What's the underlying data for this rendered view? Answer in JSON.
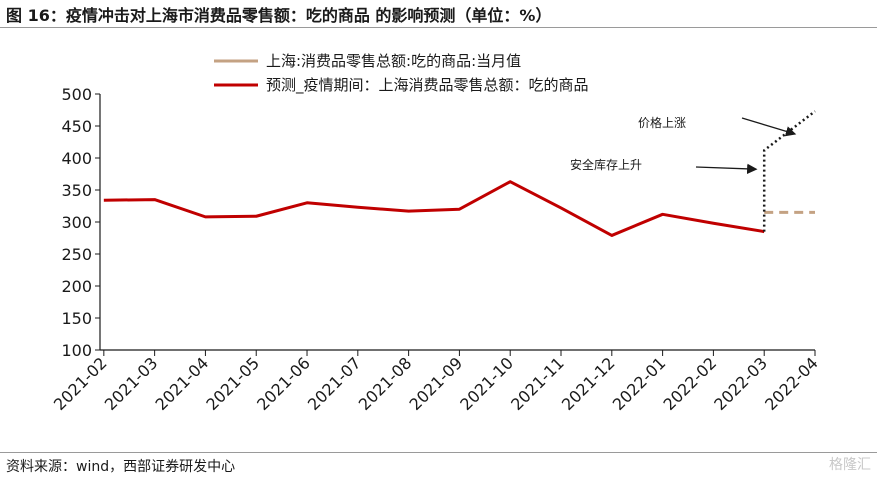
{
  "title": "图 16：疫情冲击对上海市消费品零售额：吃的商品 的影响预测（单位：%）",
  "source": "资料来源：wind，西部证券研发中心",
  "watermark": "格隆汇",
  "chart_data": {
    "type": "line",
    "categories": [
      "2021-02",
      "2021-03",
      "2021-04",
      "2021-05",
      "2021-06",
      "2021-07",
      "2021-08",
      "2021-09",
      "2021-10",
      "2021-11",
      "2021-12",
      "2022-01",
      "2022-02",
      "2022-03",
      "2022-04"
    ],
    "ylim": [
      100,
      500
    ],
    "yticks": [
      100,
      150,
      200,
      250,
      300,
      350,
      400,
      450,
      500
    ],
    "grid": false,
    "legend_position": "top-left",
    "series": [
      {
        "name": "上海:消费品零售总额:吃的商品:当月值",
        "style": "dashed",
        "color": "#c4a283",
        "values": [
          null,
          null,
          null,
          null,
          null,
          null,
          null,
          null,
          null,
          null,
          null,
          null,
          null,
          315,
          315
        ]
      },
      {
        "name": "预测_疫情期间：上海消费品零售总额：吃的商品",
        "style": "solid",
        "color": "#c00000",
        "values": [
          334,
          335,
          308,
          309,
          330,
          323,
          317,
          320,
          363,
          322,
          279,
          312,
          298,
          285,
          null
        ]
      },
      {
        "name": "",
        "style": "dotted",
        "color": "#1a1a1a",
        "points": [
          [
            "2022-03",
            285
          ],
          [
            "2022-03",
            412
          ],
          [
            "2022-04",
            473
          ]
        ]
      }
    ],
    "annotations": [
      {
        "text": "价格上涨",
        "target": [
          "2022-04",
          450
        ]
      },
      {
        "text": "安全库存上升",
        "target": [
          "2022-03",
          395
        ]
      }
    ]
  }
}
